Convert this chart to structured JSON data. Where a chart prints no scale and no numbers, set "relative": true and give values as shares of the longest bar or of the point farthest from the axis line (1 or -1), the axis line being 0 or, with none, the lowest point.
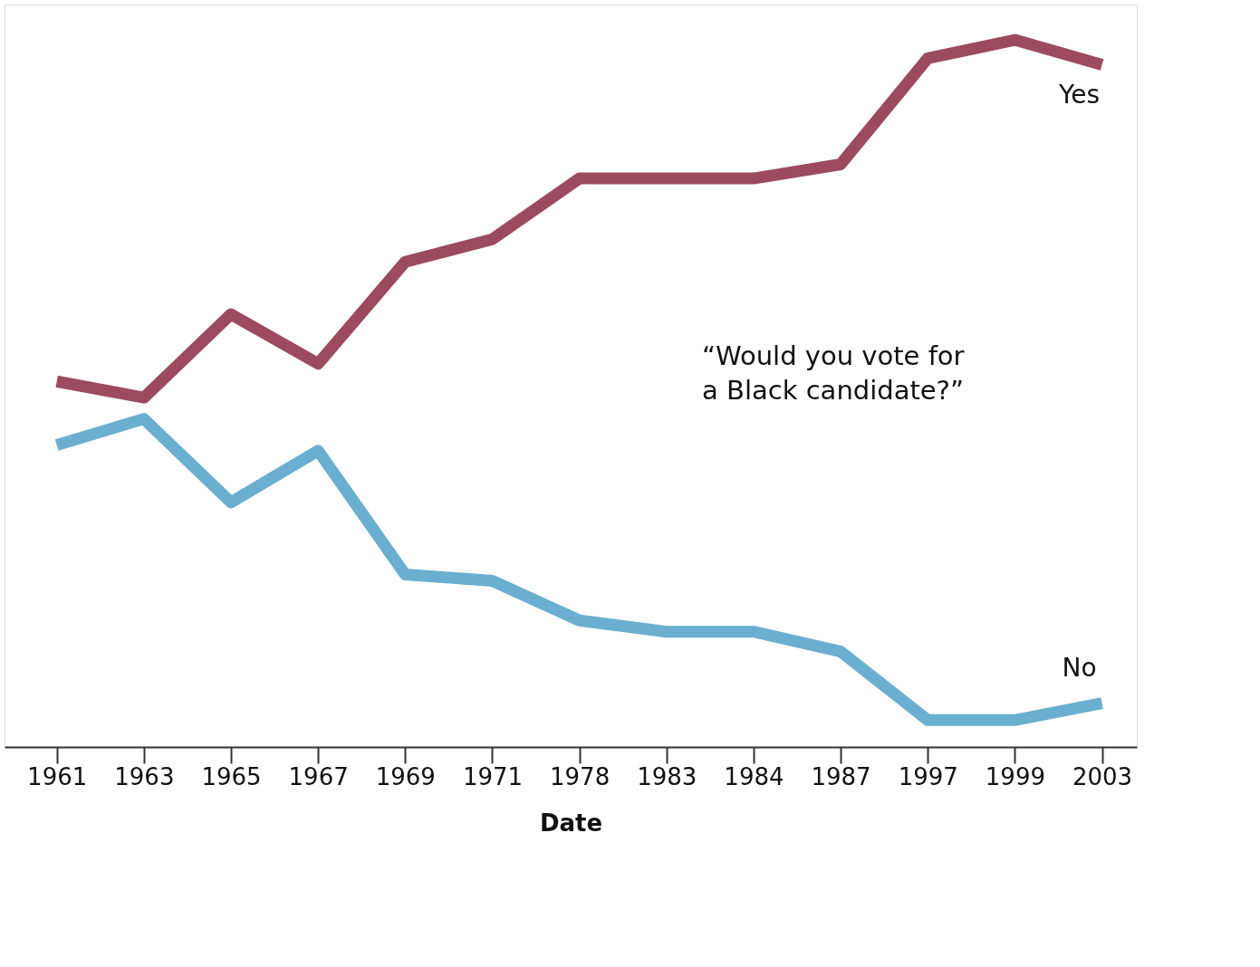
{
  "chart_data": {
    "type": "line",
    "relative": true,
    "xlabel": "Date",
    "categories": [
      "1961",
      "1963",
      "1965",
      "1967",
      "1969",
      "1971",
      "1978",
      "1983",
      "1984",
      "1987",
      "1997",
      "1999",
      "2003"
    ],
    "series": [
      {
        "name": "Yes",
        "color": "#9b4a60",
        "values": [
          0.517,
          0.494,
          0.612,
          0.542,
          0.686,
          0.718,
          0.804,
          0.804,
          0.804,
          0.824,
          0.974,
          1,
          0.965
        ]
      },
      {
        "name": "No",
        "color": "#6aaed0",
        "values": [
          0.427,
          0.464,
          0.346,
          0.419,
          0.244,
          0.235,
          0.179,
          0.163,
          0.163,
          0.135,
          0.038,
          0.038,
          0.062
        ]
      }
    ],
    "annotations": [
      "“Would you vote for a Black candidate?”"
    ],
    "grid": false,
    "marker": "none",
    "line_style": "solid"
  }
}
